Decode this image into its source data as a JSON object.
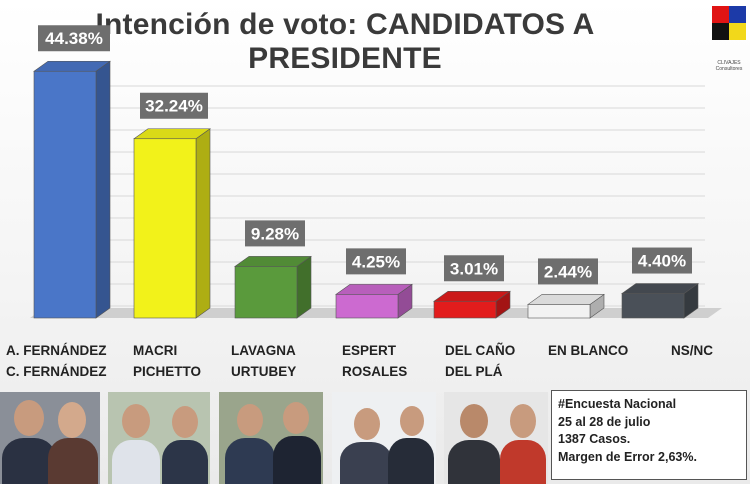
{
  "chart_data": {
    "type": "bar",
    "title": "Intención de voto: CANDIDATOS A PRESIDENTE",
    "categories": [
      [
        "A. FERNÁNDEZ",
        "C. FERNÁNDEZ"
      ],
      [
        "MACRI",
        "PICHETTO"
      ],
      [
        "LAVAGNA",
        "URTUBEY"
      ],
      [
        "ESPERT",
        "ROSALES"
      ],
      [
        "DEL CAÑO",
        "DEL PLÁ"
      ],
      [
        "EN BLANCO"
      ],
      [
        "NS/NC"
      ]
    ],
    "values": [
      44.38,
      32.24,
      9.28,
      4.25,
      3.01,
      2.44,
      4.4
    ],
    "value_labels": [
      "44.38%",
      "32.24%",
      "9.28%",
      "4.25%",
      "3.01%",
      "2.44%",
      "4.40%"
    ],
    "colors": [
      "#4a76c8",
      "#f2f21a",
      "#5a9a3c",
      "#cc6ad0",
      "#e21c1c",
      "#f2f2f2",
      "#4a5058"
    ],
    "grid": true
  },
  "info": {
    "lines": [
      "#Encuesta Nacional",
      "25 al 28 de julio",
      "1387 Casos.",
      "Margen de Error 2,63%."
    ]
  },
  "logo": {
    "text": "CLIVAJES Consultores",
    "colors": [
      "#e01414",
      "#1c3aa8",
      "#111111",
      "#f2d81a"
    ]
  }
}
